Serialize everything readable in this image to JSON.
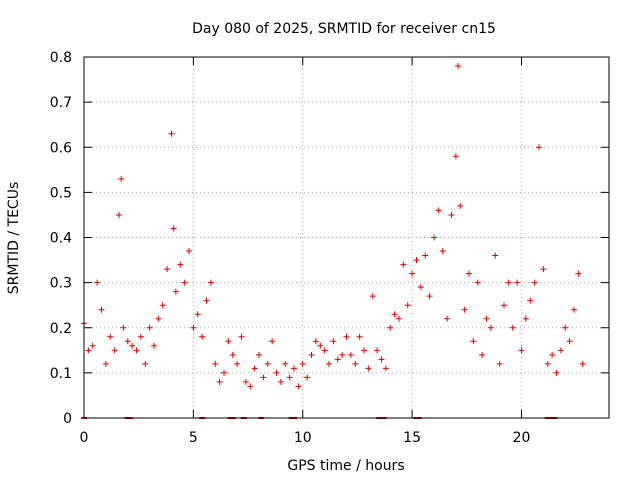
{
  "chart_data": {
    "type": "scatter",
    "title": "Day 080 of 2025, SRMTID for receiver cn15",
    "xlabel": "GPS time / hours",
    "ylabel": "SRMTID / TECUs",
    "xlim": [
      0,
      24
    ],
    "ylim": [
      0,
      0.8
    ],
    "xticks": [
      0,
      5,
      10,
      15,
      20
    ],
    "xtick_labels": [
      "0",
      "5",
      "10",
      "15",
      "20"
    ],
    "yticks": [
      0,
      0.1,
      0.2,
      0.3,
      0.4,
      0.5,
      0.6,
      0.7,
      0.8
    ],
    "ytick_labels": [
      "0",
      "0.1",
      "0.2",
      "0.3",
      "0.4",
      "0.5",
      "0.6",
      "0.7",
      "0.8"
    ],
    "grid": true,
    "marker": "+",
    "color": "#e00000",
    "series": [
      {
        "name": "SRMTID",
        "x": [
          0.0,
          0.2,
          0.4,
          0.6,
          0.8,
          1.0,
          1.2,
          1.4,
          1.6,
          1.7,
          1.8,
          2.0,
          2.2,
          2.4,
          2.6,
          2.8,
          3.0,
          3.2,
          3.4,
          3.6,
          3.8,
          4.0,
          4.1,
          4.2,
          4.4,
          4.6,
          4.8,
          5.0,
          5.2,
          5.4,
          5.6,
          5.8,
          6.0,
          6.2,
          6.4,
          6.6,
          6.8,
          7.0,
          7.2,
          7.4,
          7.6,
          7.8,
          8.0,
          8.2,
          8.4,
          8.6,
          8.8,
          9.0,
          9.2,
          9.4,
          9.6,
          9.8,
          10.0,
          10.2,
          10.4,
          10.6,
          10.8,
          11.0,
          11.2,
          11.4,
          11.6,
          11.8,
          12.0,
          12.2,
          12.4,
          12.6,
          12.8,
          13.0,
          13.2,
          13.4,
          13.6,
          13.8,
          14.0,
          14.2,
          14.4,
          14.6,
          14.8,
          15.0,
          15.2,
          15.4,
          15.6,
          15.8,
          16.0,
          16.2,
          16.4,
          16.6,
          16.8,
          17.0,
          17.1,
          17.2,
          17.4,
          17.6,
          17.8,
          18.0,
          18.2,
          18.4,
          18.6,
          18.8,
          19.0,
          19.2,
          19.4,
          19.6,
          19.8,
          20.0,
          20.2,
          20.4,
          20.6,
          20.8,
          21.0,
          21.2,
          21.4,
          21.6,
          21.8,
          22.0,
          22.2,
          22.4,
          22.6,
          22.8
        ],
        "y": [
          0.21,
          0.15,
          0.16,
          0.3,
          0.24,
          0.12,
          0.18,
          0.15,
          0.45,
          0.53,
          0.2,
          0.17,
          0.16,
          0.15,
          0.18,
          0.12,
          0.2,
          0.16,
          0.22,
          0.25,
          0.33,
          0.63,
          0.42,
          0.28,
          0.34,
          0.3,
          0.37,
          0.2,
          0.23,
          0.18,
          0.26,
          0.3,
          0.12,
          0.08,
          0.1,
          0.17,
          0.14,
          0.12,
          0.18,
          0.08,
          0.07,
          0.11,
          0.14,
          0.09,
          0.12,
          0.17,
          0.1,
          0.08,
          0.12,
          0.09,
          0.11,
          0.07,
          0.12,
          0.09,
          0.14,
          0.17,
          0.16,
          0.15,
          0.12,
          0.17,
          0.13,
          0.14,
          0.18,
          0.14,
          0.12,
          0.18,
          0.15,
          0.11,
          0.27,
          0.15,
          0.13,
          0.11,
          0.2,
          0.23,
          0.22,
          0.34,
          0.25,
          0.32,
          0.35,
          0.29,
          0.36,
          0.27,
          0.4,
          0.46,
          0.37,
          0.22,
          0.45,
          0.58,
          0.78,
          0.47,
          0.24,
          0.32,
          0.17,
          0.3,
          0.14,
          0.22,
          0.2,
          0.36,
          0.12,
          0.25,
          0.3,
          0.2,
          0.3,
          0.15,
          0.22,
          0.26,
          0.3,
          0.6,
          0.33,
          0.12,
          0.14,
          0.1,
          0.15,
          0.2,
          0.17,
          0.24,
          0.32,
          0.12
        ]
      }
    ],
    "baseline_dashes": [
      0.0,
      2.0,
      2.1,
      5.4,
      6.7,
      6.8,
      7.3,
      8.1,
      9.5,
      9.6,
      13.5,
      13.6,
      13.7,
      15.2,
      15.3,
      21.2,
      21.4,
      21.5
    ]
  }
}
